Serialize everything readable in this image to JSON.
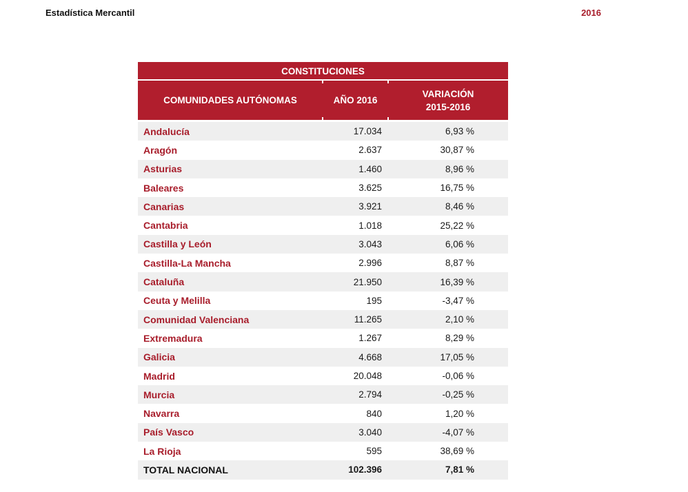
{
  "colors": {
    "header-red": "#B11E2D",
    "label-red": "#A81D2B",
    "stripe": "#EFEFEF",
    "text": "#1A1A1A"
  },
  "page_header": {
    "title": "Estadística Mercantil",
    "year": "2016"
  },
  "table": {
    "title": "CONSTITUCIONES",
    "columns": {
      "region": "COMUNIDADES AUTÓNOMAS",
      "year": "AÑO 2016",
      "variation_line1": "VARIACIÓN",
      "variation_line2": "2015-2016"
    },
    "rows": [
      {
        "name": "Andalucía",
        "value": "17.034",
        "variation": "6,93 %"
      },
      {
        "name": "Aragón",
        "value": "2.637",
        "variation": "30,87 %"
      },
      {
        "name": "Asturias",
        "value": "1.460",
        "variation": "8,96 %"
      },
      {
        "name": "Baleares",
        "value": "3.625",
        "variation": "16,75 %"
      },
      {
        "name": "Canarias",
        "value": "3.921",
        "variation": "8,46 %"
      },
      {
        "name": "Cantabria",
        "value": "1.018",
        "variation": "25,22 %"
      },
      {
        "name": "Castilla y León",
        "value": "3.043",
        "variation": "6,06 %"
      },
      {
        "name": "Castilla-La Mancha",
        "value": "2.996",
        "variation": "8,87 %"
      },
      {
        "name": "Cataluña",
        "value": "21.950",
        "variation": "16,39 %"
      },
      {
        "name": "Ceuta y Melilla",
        "value": "195",
        "variation": "-3,47 %"
      },
      {
        "name": "Comunidad Valenciana",
        "value": "11.265",
        "variation": "2,10 %"
      },
      {
        "name": "Extremadura",
        "value": "1.267",
        "variation": "8,29 %"
      },
      {
        "name": "Galicia",
        "value": "4.668",
        "variation": "17,05 %"
      },
      {
        "name": "Madrid",
        "value": "20.048",
        "variation": "-0,06 %"
      },
      {
        "name": "Murcia",
        "value": "2.794",
        "variation": "-0,25 %"
      },
      {
        "name": "Navarra",
        "value": "840",
        "variation": "1,20 %"
      },
      {
        "name": "País Vasco",
        "value": "3.040",
        "variation": "-4,07 %"
      },
      {
        "name": "La Rioja",
        "value": "595",
        "variation": "38,69 %"
      }
    ],
    "total": {
      "name": "TOTAL NACIONAL",
      "value": "102.396",
      "variation": "7,81 %"
    }
  }
}
